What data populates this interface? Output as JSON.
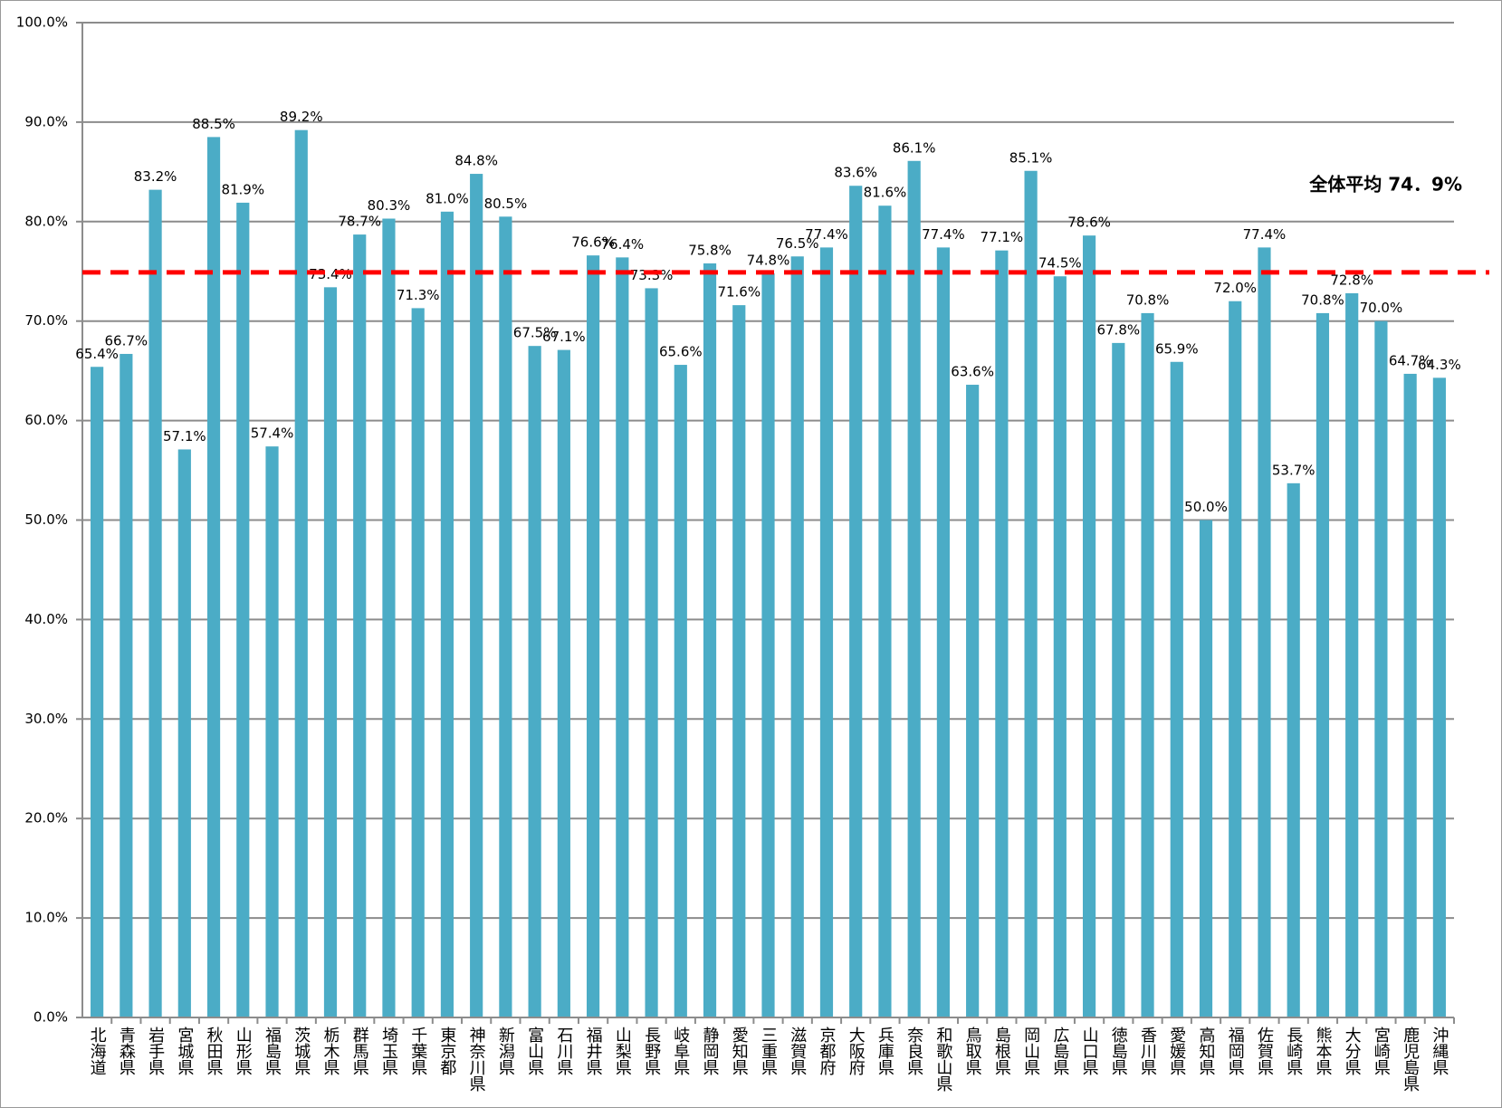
{
  "chart_data": {
    "type": "bar",
    "categories": [
      "北海道",
      "青森県",
      "岩手県",
      "宮城県",
      "秋田県",
      "山形県",
      "福島県",
      "茨城県",
      "栃木県",
      "群馬県",
      "埼玉県",
      "千葉県",
      "東京都",
      "神奈川県",
      "新潟県",
      "富山県",
      "石川県",
      "福井県",
      "山梨県",
      "長野県",
      "岐阜県",
      "静岡県",
      "愛知県",
      "三重県",
      "滋賀県",
      "京都府",
      "大阪府",
      "兵庫県",
      "奈良県",
      "和歌山県",
      "鳥取県",
      "島根県",
      "岡山県",
      "広島県",
      "山口県",
      "徳島県",
      "香川県",
      "愛媛県",
      "高知県",
      "福岡県",
      "佐賀県",
      "長崎県",
      "熊本県",
      "大分県",
      "宮崎県",
      "鹿児島県",
      "沖縄県"
    ],
    "values": [
      65.4,
      66.7,
      83.2,
      57.1,
      88.5,
      81.9,
      57.4,
      89.2,
      73.4,
      78.7,
      80.3,
      71.3,
      81.0,
      84.8,
      80.5,
      67.5,
      67.1,
      76.6,
      76.4,
      73.3,
      65.6,
      75.8,
      71.6,
      74.8,
      76.5,
      77.4,
      83.6,
      81.6,
      86.1,
      77.4,
      63.6,
      77.1,
      85.1,
      74.5,
      78.6,
      67.8,
      70.8,
      65.9,
      50.0,
      72.0,
      77.4,
      53.7,
      70.8,
      72.8,
      70.0,
      64.7,
      64.3
    ],
    "value_labels": [
      "65.4%",
      "66.7%",
      "83.2%",
      "57.1%",
      "88.5%",
      "81.9%",
      "57.4%",
      "89.2%",
      "73.4%",
      "78.7%",
      "80.3%",
      "71.3%",
      "81.0%",
      "84.8%",
      "80.5%",
      "67.5%",
      "67.1%",
      "76.6%",
      "76.4%",
      "73.3%",
      "65.6%",
      "75.8%",
      "71.6%",
      "74.8%",
      "76.5%",
      "77.4%",
      "83.6%",
      "81.6%",
      "86.1%",
      "77.4%",
      "63.6%",
      "77.1%",
      "85.1%",
      "74.5%",
      "78.6%",
      "67.8%",
      "70.8%",
      "65.9%",
      "50.0%",
      "72.0%",
      "77.4%",
      "53.7%",
      "70.8%",
      "72.8%",
      "70.0%",
      "64.7%",
      "64.3%"
    ],
    "color": "#4bacc6",
    "ylim": [
      0,
      100
    ],
    "yticks": [
      {
        "value": 0,
        "label": "0.0%"
      },
      {
        "value": 10,
        "label": "10.0%"
      },
      {
        "value": 20,
        "label": "20.0%"
      },
      {
        "value": 30,
        "label": "30.0%"
      },
      {
        "value": 40,
        "label": "40.0%"
      },
      {
        "value": 50,
        "label": "50.0%"
      },
      {
        "value": 60,
        "label": "60.0%"
      },
      {
        "value": 70,
        "label": "70.0%"
      },
      {
        "value": 80,
        "label": "80.0%"
      },
      {
        "value": 90,
        "label": "90.0%"
      },
      {
        "value": 100,
        "label": "100.0%"
      }
    ],
    "grid": true,
    "average": {
      "value": 74.9,
      "label": "全体平均 74．9%",
      "color": "#ff0000"
    }
  }
}
